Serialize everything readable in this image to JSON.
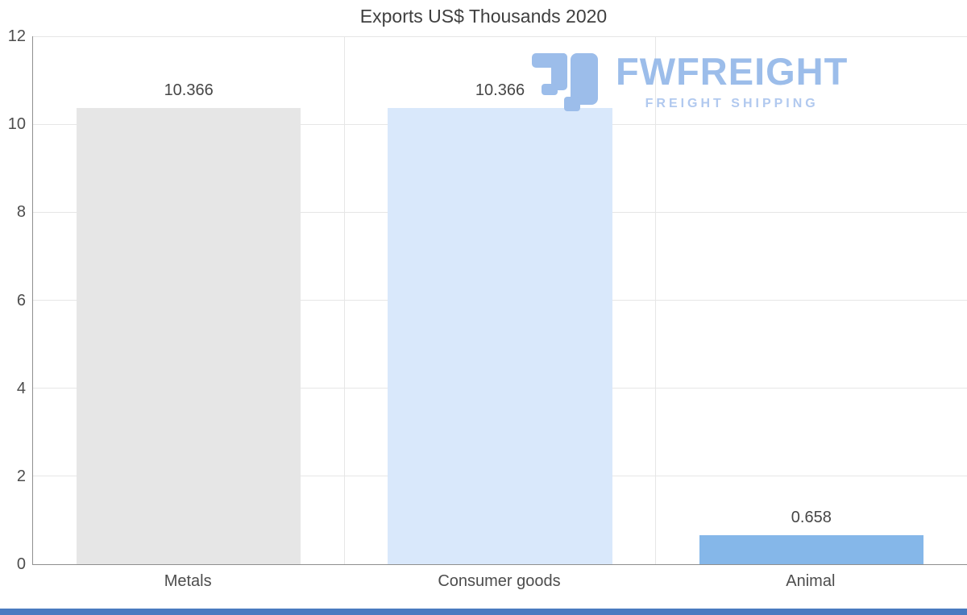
{
  "watermark": {
    "brand": "FWFREIGHT",
    "tagline": "FREIGHT SHIPPING"
  },
  "chart_data": {
    "type": "bar",
    "title": "Exports US$ Thousands 2020",
    "categories": [
      "Metals",
      "Consumer goods",
      "Animal"
    ],
    "values": [
      10.366,
      10.366,
      0.658
    ],
    "value_labels": [
      "10.366",
      "10.366",
      "0.658"
    ],
    "bar_colors": [
      "#e6e6e6",
      "#d9e8fb",
      "#85b7e9"
    ],
    "xlabel": "",
    "ylabel": "",
    "ylim": [
      0,
      12
    ],
    "yticks": [
      0,
      2,
      4,
      6,
      8,
      10,
      12
    ],
    "grid": true,
    "legend": "none"
  },
  "colors": {
    "background": "#ffffff",
    "grid": "#e6e6e6",
    "axis": "#8f8f8f",
    "title_text": "#3f3f3f",
    "tick_text": "#4d4d4d",
    "label_text": "#464646",
    "watermark_blue": "#9cbdea",
    "watermark_tagline_blue": "#b1c9ef",
    "footer_strip": "#4a7bc0"
  }
}
